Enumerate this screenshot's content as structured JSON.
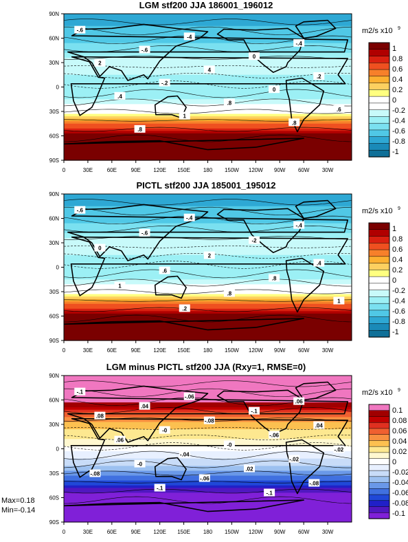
{
  "chart_data": [
    {
      "type": "contour-map",
      "title": "LGM stf200 JJA 186001_196012",
      "units_label": "m2/s x10",
      "units_exponent": "9",
      "colorbar_ticks": [
        "1",
        "0.8",
        "0.6",
        "0.4",
        "0.2",
        "0",
        "-0.2",
        "-0.4",
        "-0.6",
        "-0.8",
        "-1"
      ],
      "colorbar_colors": [
        "#7a0000",
        "#b00000",
        "#d92010",
        "#ef5020",
        "#f7802a",
        "#fdb030",
        "#fdd060",
        "#ffff80",
        "#ffffff",
        "#ffffff",
        "#c8fafa",
        "#9cf0f5",
        "#7ae0f0",
        "#50c8e6",
        "#2ea8d4",
        "#1a8ab8",
        "#107098"
      ],
      "zonal_profile": {
        "latitudes": [
          90,
          60,
          45,
          30,
          15,
          0,
          -15,
          -30,
          -45,
          -60,
          -75,
          -90
        ],
        "values": [
          -0.7,
          -0.6,
          -0.45,
          -0.2,
          -0.3,
          -0.35,
          -0.3,
          0.0,
          0.5,
          0.95,
          1.0,
          1.0
        ]
      },
      "contour_labels": [
        "-.6",
        "-4",
        "-.4",
        "-.6",
        "0",
        "2",
        "4",
        ".2",
        "-.2",
        "0",
        ".4",
        ".8",
        ".6",
        "1",
        ".8",
        ".8"
      ]
    },
    {
      "type": "contour-map",
      "title": "PICTL stf200 JJA 185001_195012",
      "units_label": "m2/s x10",
      "units_exponent": "9",
      "colorbar_ticks": [
        "1",
        "0.8",
        "0.6",
        "0.4",
        "0.2",
        "0",
        "-0.2",
        "-0.4",
        "-0.6",
        "-0.8",
        "-1"
      ],
      "colorbar_colors": [
        "#7a0000",
        "#b00000",
        "#d92010",
        "#ef5020",
        "#f7802a",
        "#fdb030",
        "#fdd060",
        "#ffff80",
        "#ffffff",
        "#ffffff",
        "#c8fafa",
        "#9cf0f5",
        "#7ae0f0",
        "#50c8e6",
        "#2ea8d4",
        "#1a8ab8",
        "#107098"
      ],
      "zonal_profile": {
        "latitudes": [
          90,
          60,
          45,
          30,
          15,
          0,
          -15,
          -30,
          -45,
          -60,
          -75,
          -90
        ],
        "values": [
          -0.7,
          -0.6,
          -0.45,
          -0.2,
          -0.3,
          -0.35,
          -0.3,
          0.0,
          0.5,
          0.95,
          1.0,
          1.0
        ]
      },
      "contour_labels": [
        "-.6",
        "-.4",
        "-.4",
        "-.6",
        "-2",
        "0",
        "2",
        ".4",
        ".6",
        ".8",
        "1",
        ".8",
        "1",
        ".2"
      ]
    },
    {
      "type": "contour-map",
      "title": "LGM minus PICTL stf200 JJA (Rxy=1, RMSE=0)",
      "units_label": "m2/s x10",
      "units_exponent": "9",
      "colorbar_ticks": [
        "0.1",
        "0.08",
        "0.06",
        "0.04",
        "0.02",
        "0",
        "-0.02",
        "-0.04",
        "-0.06",
        "-0.08",
        "-0.1"
      ],
      "colorbar_colors": [
        "#f077c0",
        "#a00000",
        "#c00000",
        "#e03020",
        "#f06030",
        "#f89040",
        "#fcc050",
        "#fde890",
        "#fff8d0",
        "#ffffff",
        "#e8f0ff",
        "#c8dcf8",
        "#9cc0f0",
        "#6a98e8",
        "#4070e0",
        "#2048d8",
        "#2020c8",
        "#5018c0",
        "#8020d8"
      ],
      "zonal_profile": {
        "latitudes": [
          90,
          60,
          45,
          30,
          15,
          0,
          -15,
          -30,
          -45,
          -60,
          -75,
          -90
        ],
        "values": [
          0.1,
          0.1,
          0.06,
          0.03,
          0.02,
          0.0,
          -0.02,
          -0.04,
          -0.07,
          -0.1,
          -0.1,
          -0.1
        ]
      },
      "contour_labels": [
        "-.1",
        "-.06",
        ".06",
        ".04",
        "-.1",
        ".08",
        "-.08",
        ".04",
        "-0",
        "-.06",
        ".06",
        "-0",
        "-.02",
        "-.04",
        "-.02",
        "-0",
        ".02",
        "-.08",
        "-.06",
        "-.08",
        "-.1",
        "-.1"
      ],
      "stats": {
        "max": "Max=0.18",
        "min": "Min=-0.14"
      }
    }
  ],
  "axes": {
    "lat_ticks": [
      "90N",
      "60N",
      "30N",
      "0",
      "30S",
      "60S",
      "90S"
    ],
    "lon_ticks": [
      "0",
      "30E",
      "60E",
      "90E",
      "120E",
      "150E",
      "180",
      "150W",
      "120W",
      "90W",
      "60W",
      "30W"
    ]
  }
}
